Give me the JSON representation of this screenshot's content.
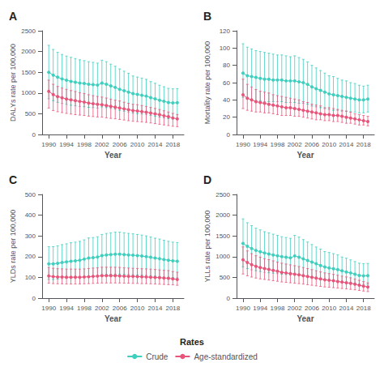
{
  "chart_data": [
    {
      "type": "line",
      "title": "A",
      "xlabel": "Year",
      "ylabel": "DALYs rate per 100,000",
      "x": [
        1990,
        1991,
        1992,
        1993,
        1994,
        1995,
        1996,
        1997,
        1998,
        1999,
        2000,
        2001,
        2002,
        2003,
        2004,
        2005,
        2006,
        2007,
        2008,
        2009,
        2010,
        2011,
        2012,
        2013,
        2014,
        2015,
        2016,
        2017,
        2018,
        2019
      ],
      "xlim": [
        1988.5,
        2020.5
      ],
      "xticks": [
        1990,
        1994,
        1998,
        2002,
        2006,
        2010,
        2014,
        2018
      ],
      "ylim": [
        0,
        2500
      ],
      "yticks": [
        0,
        500,
        1000,
        1500,
        2000,
        2500
      ],
      "grid": false,
      "marker": "circle",
      "legend": "bottom",
      "legend_title": "Rates",
      "series": [
        {
          "name": "Crude",
          "color": "#3ECFBF",
          "values": [
            1500,
            1430,
            1380,
            1340,
            1310,
            1280,
            1260,
            1240,
            1230,
            1210,
            1200,
            1190,
            1240,
            1210,
            1170,
            1135,
            1090,
            1055,
            1020,
            985,
            965,
            945,
            925,
            890,
            860,
            825,
            800,
            770,
            760,
            765
          ],
          "upper": [
            2150,
            2050,
            1980,
            1930,
            1890,
            1860,
            1830,
            1800,
            1780,
            1755,
            1740,
            1720,
            1790,
            1755,
            1695,
            1645,
            1580,
            1525,
            1475,
            1410,
            1385,
            1360,
            1330,
            1275,
            1235,
            1188,
            1152,
            1112,
            1100,
            1105
          ],
          "lower": [
            860,
            815,
            775,
            748,
            725,
            705,
            690,
            678,
            668,
            655,
            648,
            638,
            665,
            648,
            628,
            610,
            582,
            562,
            542,
            515,
            502,
            492,
            482,
            462,
            442,
            420,
            400,
            382,
            373,
            378
          ]
        },
        {
          "name": "Age-standardized",
          "color": "#E8547A",
          "values": [
            1040,
            960,
            915,
            885,
            855,
            835,
            815,
            798,
            782,
            758,
            742,
            728,
            718,
            698,
            678,
            658,
            638,
            618,
            598,
            578,
            568,
            552,
            538,
            518,
            498,
            478,
            452,
            428,
            398,
            378
          ],
          "upper": [
            1310,
            1210,
            1158,
            1118,
            1088,
            1058,
            1038,
            1008,
            988,
            958,
            938,
            918,
            902,
            878,
            852,
            828,
            808,
            778,
            752,
            728,
            718,
            698,
            678,
            652,
            628,
            602,
            572,
            542,
            508,
            482
          ],
          "lower": [
            638,
            578,
            548,
            528,
            508,
            492,
            478,
            468,
            458,
            442,
            432,
            422,
            418,
            402,
            388,
            378,
            362,
            348,
            332,
            318,
            312,
            302,
            292,
            278,
            262,
            246,
            230,
            215,
            198,
            188
          ]
        }
      ]
    },
    {
      "type": "line",
      "title": "B",
      "xlabel": "Year",
      "ylabel": "Mortality rate per 100,000",
      "x": [
        1990,
        1991,
        1992,
        1993,
        1994,
        1995,
        1996,
        1997,
        1998,
        1999,
        2000,
        2001,
        2002,
        2003,
        2004,
        2005,
        2006,
        2007,
        2008,
        2009,
        2010,
        2011,
        2012,
        2013,
        2014,
        2015,
        2016,
        2017,
        2018,
        2019
      ],
      "xlim": [
        1988.5,
        2020.5
      ],
      "xticks": [
        1990,
        1994,
        1998,
        2002,
        2006,
        2010,
        2014,
        2018
      ],
      "ylim": [
        0,
        120
      ],
      "yticks": [
        0,
        20,
        40,
        60,
        80,
        100,
        120
      ],
      "grid": false,
      "marker": "circle",
      "series": [
        {
          "name": "Crude",
          "color": "#3ECFBF",
          "values": [
            71,
            68,
            67,
            66,
            65,
            64,
            64,
            63,
            63,
            63,
            62,
            62,
            62,
            61,
            60,
            58,
            55,
            53,
            51,
            49,
            47,
            46,
            45,
            44,
            43,
            42,
            41,
            40,
            40,
            41
          ],
          "upper": [
            105,
            101,
            99,
            97,
            96,
            95,
            94,
            93,
            92,
            92,
            91,
            90,
            91,
            89,
            87,
            84,
            80,
            77,
            74,
            71,
            68,
            67,
            65,
            63,
            62,
            60,
            59,
            57,
            56,
            57
          ],
          "lower": [
            43,
            41,
            40,
            39,
            39,
            38,
            38,
            38,
            38,
            38,
            37,
            37,
            37,
            36,
            36,
            35,
            33,
            32,
            31,
            30,
            29,
            28,
            28,
            27,
            27,
            26,
            26,
            25,
            25,
            26
          ]
        },
        {
          "name": "Age-standardized",
          "color": "#E8547A",
          "values": [
            46,
            42,
            40,
            38,
            37,
            36,
            35,
            34,
            33,
            32,
            31,
            31,
            30,
            29,
            28,
            27,
            26,
            25,
            24,
            23,
            23,
            22,
            22,
            21,
            20,
            19,
            18,
            17,
            16,
            15
          ],
          "upper": [
            64,
            58,
            55,
            52,
            50,
            49,
            48,
            46,
            45,
            44,
            43,
            42,
            41,
            40,
            38,
            37,
            35,
            34,
            33,
            31,
            31,
            30,
            29,
            28,
            27,
            26,
            24,
            23,
            22,
            21
          ],
          "lower": [
            30,
            28,
            27,
            26,
            26,
            25,
            25,
            24,
            23,
            22,
            22,
            22,
            21,
            21,
            20,
            19,
            18,
            17,
            17,
            16,
            16,
            15,
            15,
            14,
            13,
            13,
            12,
            11,
            11,
            10
          ]
        }
      ]
    },
    {
      "type": "line",
      "title": "C",
      "xlabel": "Year",
      "ylabel": "YLDs rate per 100,000",
      "x": [
        1990,
        1991,
        1992,
        1993,
        1994,
        1995,
        1996,
        1997,
        1998,
        1999,
        2000,
        2001,
        2002,
        2003,
        2004,
        2005,
        2006,
        2007,
        2008,
        2009,
        2010,
        2011,
        2012,
        2013,
        2014,
        2015,
        2016,
        2017,
        2018,
        2019
      ],
      "xlim": [
        1988.5,
        2020.5
      ],
      "xticks": [
        1990,
        1994,
        1998,
        2002,
        2006,
        2010,
        2014,
        2018
      ],
      "ylim": [
        0,
        500
      ],
      "yticks": [
        0,
        100,
        200,
        300,
        400,
        500
      ],
      "grid": false,
      "marker": "circle",
      "series": [
        {
          "name": "Crude",
          "color": "#3ECFBF",
          "values": [
            165,
            165,
            168,
            172,
            175,
            178,
            180,
            183,
            188,
            193,
            195,
            198,
            205,
            208,
            210,
            212,
            212,
            210,
            208,
            207,
            205,
            203,
            200,
            197,
            193,
            190,
            186,
            183,
            180,
            178
          ],
          "upper": [
            248,
            248,
            252,
            258,
            262,
            267,
            270,
            274,
            281,
            290,
            292,
            296,
            307,
            312,
            315,
            318,
            318,
            315,
            312,
            310,
            307,
            304,
            300,
            295,
            289,
            285,
            279,
            274,
            270,
            268
          ],
          "lower": [
            90,
            90,
            92,
            94,
            96,
            98,
            99,
            101,
            103,
            106,
            107,
            109,
            112,
            114,
            115,
            116,
            116,
            115,
            114,
            113,
            112,
            111,
            110,
            108,
            106,
            104,
            102,
            100,
            99,
            98
          ]
        },
        {
          "name": "Age-standardized",
          "color": "#E8547A",
          "values": [
            107,
            104,
            102,
            102,
            101,
            101,
            101,
            101,
            102,
            103,
            105,
            106,
            108,
            108,
            108,
            108,
            107,
            106,
            105,
            105,
            104,
            103,
            102,
            101,
            100,
            99,
            97,
            96,
            93,
            90
          ],
          "upper": [
            148,
            144,
            142,
            141,
            140,
            140,
            140,
            140,
            141,
            143,
            145,
            146,
            149,
            149,
            149,
            149,
            148,
            146,
            145,
            144,
            143,
            142,
            141,
            140,
            138,
            136,
            134,
            133,
            128,
            125
          ],
          "lower": [
            72,
            70,
            69,
            69,
            68,
            68,
            68,
            68,
            69,
            70,
            71,
            72,
            73,
            73,
            73,
            73,
            73,
            72,
            72,
            71,
            71,
            70,
            70,
            69,
            68,
            67,
            66,
            65,
            64,
            62
          ]
        }
      ]
    },
    {
      "type": "line",
      "title": "D",
      "xlabel": "Year",
      "ylabel": "YLLs rate per 100,000",
      "x": [
        1990,
        1991,
        1992,
        1993,
        1994,
        1995,
        1996,
        1997,
        1998,
        1999,
        2000,
        2001,
        2002,
        2003,
        2004,
        2005,
        2006,
        2007,
        2008,
        2009,
        2010,
        2011,
        2012,
        2013,
        2014,
        2015,
        2016,
        2017,
        2018,
        2019
      ],
      "xlim": [
        1988.5,
        2020.5
      ],
      "xticks": [
        1990,
        1994,
        1998,
        2002,
        2006,
        2010,
        2014,
        2018
      ],
      "ylim": [
        0,
        2500
      ],
      "yticks": [
        0,
        500,
        1000,
        1500,
        2000,
        2500
      ],
      "grid": false,
      "marker": "circle",
      "series": [
        {
          "name": "Crude",
          "color": "#3ECFBF",
          "values": [
            1320,
            1250,
            1195,
            1150,
            1118,
            1088,
            1065,
            1042,
            1022,
            1000,
            985,
            970,
            1018,
            988,
            948,
            908,
            868,
            828,
            788,
            750,
            728,
            708,
            688,
            658,
            628,
            608,
            578,
            548,
            538,
            542
          ],
          "upper": [
            1910,
            1818,
            1748,
            1686,
            1645,
            1602,
            1572,
            1542,
            1512,
            1480,
            1462,
            1442,
            1512,
            1472,
            1412,
            1352,
            1292,
            1232,
            1182,
            1122,
            1100,
            1072,
            1042,
            992,
            962,
            922,
            882,
            842,
            832,
            836
          ],
          "lower": [
            752,
            712,
            682,
            660,
            642,
            622,
            612,
            600,
            590,
            578,
            570,
            560,
            592,
            572,
            550,
            530,
            510,
            490,
            472,
            452,
            442,
            432,
            420,
            400,
            382,
            370,
            355,
            335,
            330,
            334
          ]
        },
        {
          "name": "Age-standardized",
          "color": "#E8547A",
          "values": [
            925,
            858,
            806,
            768,
            738,
            712,
            692,
            668,
            648,
            622,
            608,
            592,
            578,
            562,
            542,
            522,
            502,
            482,
            462,
            442,
            432,
            418,
            402,
            388,
            372,
            358,
            338,
            312,
            288,
            268
          ],
          "upper": [
            1235,
            1138,
            1072,
            1022,
            988,
            952,
            928,
            898,
            870,
            842,
            822,
            802,
            782,
            762,
            738,
            712,
            688,
            660,
            632,
            608,
            592,
            572,
            552,
            530,
            510,
            490,
            462,
            430,
            398,
            370
          ],
          "lower": [
            582,
            538,
            508,
            484,
            464,
            450,
            436,
            420,
            406,
            390,
            380,
            370,
            360,
            350,
            338,
            324,
            310,
            296,
            282,
            270,
            262,
            252,
            242,
            232,
            222,
            212,
            200,
            185,
            170,
            158
          ]
        }
      ]
    }
  ]
}
